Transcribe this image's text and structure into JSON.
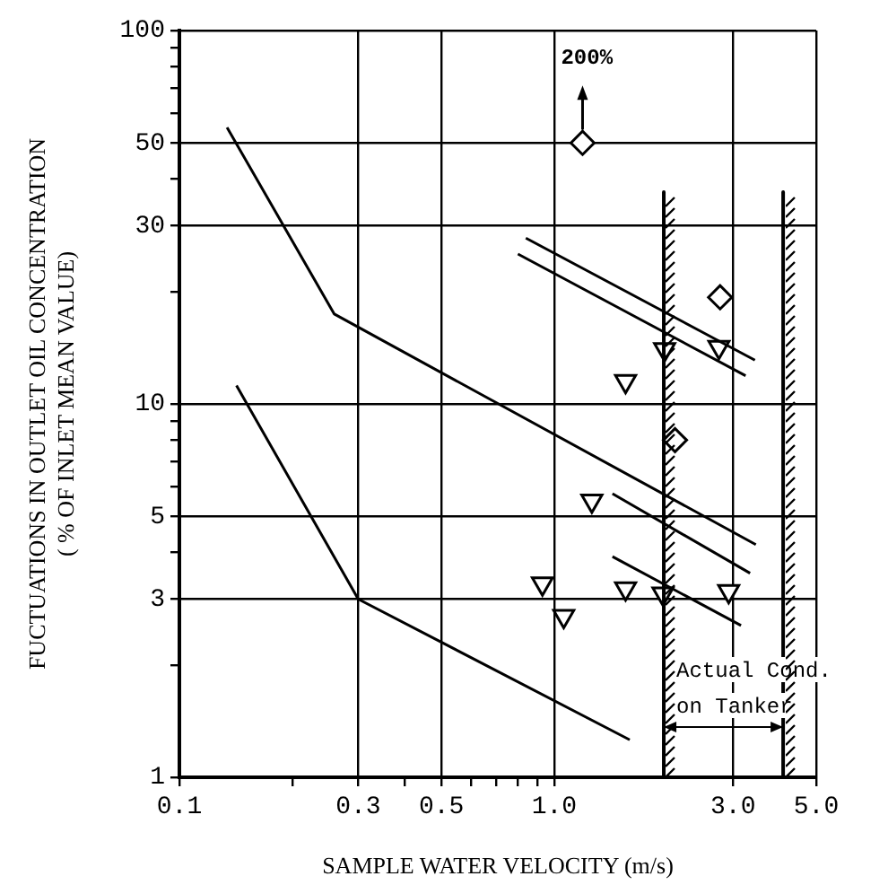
{
  "chart_data": {
    "type": "scatter",
    "xlabel": "SAMPLE WATER VELOCITY (m/s)",
    "ylabel": "FUCTUATIONS IN OUTLET OIL CONCENTRATION\n( % OF INLET MEAN VALUE)",
    "log": "xy",
    "grid": true,
    "legend": false,
    "xlim": [
      0.1,
      5
    ],
    "ylim": [
      1,
      100
    ],
    "xticks": [
      0.1,
      {
        "value": 0.2,
        "label": null
      },
      {
        "value": 0.3,
        "label": "0.3"
      },
      {
        "value": 0.4,
        "label": null
      },
      {
        "value": 0.5,
        "label": "0.5"
      },
      {
        "value": 0.6,
        "label": null
      },
      {
        "value": 0.7,
        "label": null
      },
      {
        "value": 0.8,
        "label": null
      },
      {
        "value": 0.9,
        "label": null
      },
      {
        "value": 1,
        "label": "1.0"
      },
      {
        "value": 3,
        "label": "3.0"
      },
      {
        "value": 5,
        "label": "5.0"
      }
    ],
    "yticks": [
      1,
      {
        "value": 2,
        "label": null
      },
      3,
      {
        "value": 4,
        "label": null
      },
      5,
      {
        "value": 6,
        "label": null
      },
      {
        "value": 7,
        "label": null
      },
      {
        "value": 8,
        "label": null
      },
      {
        "value": 9,
        "label": null
      },
      10,
      {
        "value": 20,
        "label": null
      },
      30,
      {
        "value": 40,
        "label": null
      },
      50,
      {
        "value": 60,
        "label": null
      },
      {
        "value": 70,
        "label": null
      },
      {
        "value": 80,
        "label": null
      },
      {
        "value": 90,
        "label": null
      },
      100
    ],
    "series": [
      {
        "type": "line",
        "color": "#000000",
        "marker": "none",
        "x": [
          0.134,
          0.259,
          3.45
        ],
        "values": [
          55,
          17.4,
          4.2
        ]
      },
      {
        "type": "line",
        "color": "#000000",
        "marker": "none",
        "x": [
          0.142,
          0.3,
          1.59
        ],
        "values": [
          11.2,
          3,
          1.26
        ]
      },
      {
        "type": "line",
        "color": "#000000",
        "marker": "none",
        "x": [
          0.84,
          3.43
        ],
        "values": [
          27.8,
          13.1
        ]
      },
      {
        "type": "line",
        "color": "#000000",
        "marker": "none",
        "x": [
          0.8,
          3.24
        ],
        "values": [
          25.2,
          11.9
        ]
      },
      {
        "type": "line",
        "color": "#000000",
        "marker": "none",
        "x": [
          1.43,
          3.33
        ],
        "values": [
          5.75,
          3.52
        ]
      },
      {
        "type": "line",
        "color": "#000000",
        "marker": "none",
        "x": [
          1.43,
          3.15
        ],
        "values": [
          3.9,
          2.55
        ]
      },
      {
        "color": "#000000",
        "marker": "diamond",
        "x": [
          1.19,
          2.77,
          2.1
        ],
        "values": [
          50,
          19.3,
          8
        ]
      },
      {
        "color": "#000000",
        "marker": "triangle",
        "x": [
          1.55,
          1.97,
          2.75,
          1.26,
          0.93,
          1.06,
          1.55,
          1.95,
          2.92
        ],
        "values": [
          11.5,
          14,
          14.2,
          5.5,
          3.3,
          2.7,
          3.2,
          3.1,
          3.15
        ]
      }
    ],
    "ref_lines": [
      {
        "axis": "x",
        "value": 1.96
      },
      {
        "axis": "x",
        "value": 4.08
      }
    ],
    "annotations": [
      {
        "text": "200%",
        "x": 1.19,
        "y": 50
      },
      "Actual Cond.\non Tanker"
    ]
  }
}
